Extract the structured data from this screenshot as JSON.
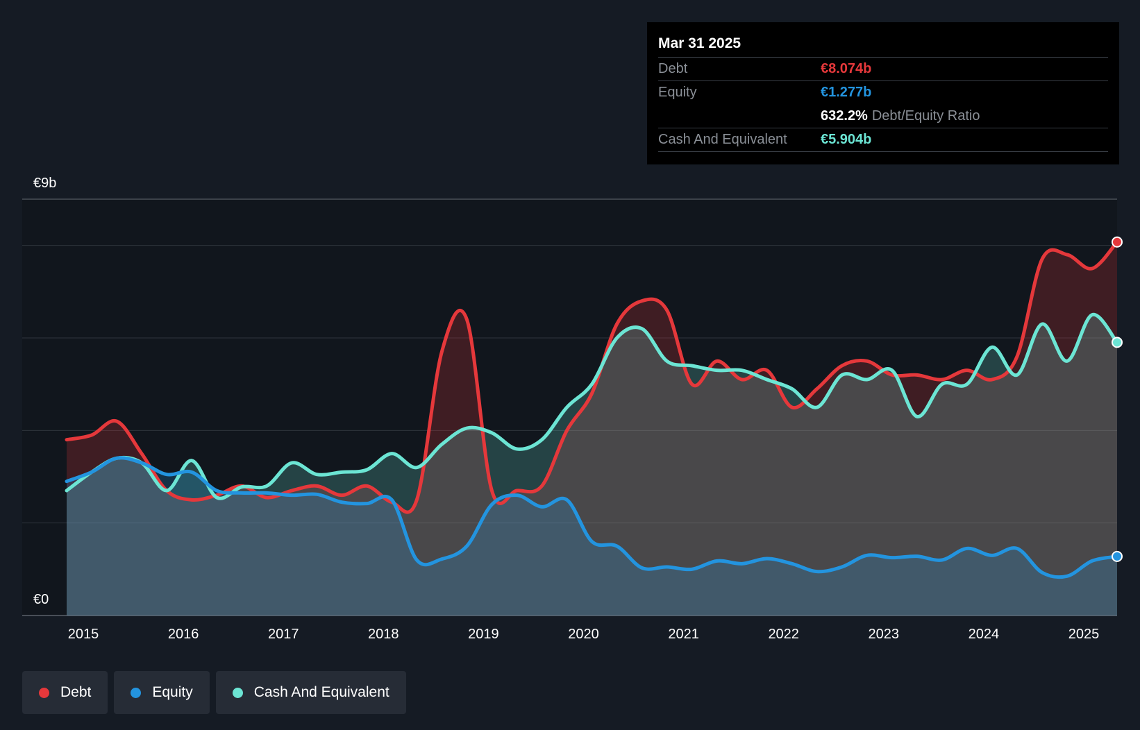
{
  "tooltip": {
    "date": "Mar 31 2025",
    "debt_label": "Debt",
    "debt_value": "€8.074b",
    "equity_label": "Equity",
    "equity_value": "€1.277b",
    "ratio_value": "632.2%",
    "ratio_label": "Debt/Equity Ratio",
    "cash_label": "Cash And Equivalent",
    "cash_value": "€5.904b"
  },
  "legend": [
    {
      "label": "Debt",
      "color": "#e5383b"
    },
    {
      "label": "Equity",
      "color": "#2394df"
    },
    {
      "label": "Cash And Equivalent",
      "color": "#6ce5d4"
    }
  ],
  "chart_data": {
    "type": "area",
    "y_axis_labels": {
      "top": "€9b",
      "bottom": "€0"
    },
    "ylim": [
      0,
      9
    ],
    "xlim": [
      2014.75,
      2025.25
    ],
    "x_ticks": [
      2015,
      2016,
      2017,
      2018,
      2019,
      2020,
      2021,
      2022,
      2023,
      2024,
      2025
    ],
    "grid": true,
    "colors": {
      "debt": "#e5383b",
      "equity": "#2394df",
      "cash": "#6ce5d4"
    },
    "series": [
      {
        "name": "Debt",
        "key": "debt",
        "points": [
          [
            2014.75,
            3.8
          ],
          [
            2015.0,
            3.9
          ],
          [
            2015.25,
            4.2
          ],
          [
            2015.5,
            3.5
          ],
          [
            2015.75,
            2.7
          ],
          [
            2016.0,
            2.5
          ],
          [
            2016.25,
            2.6
          ],
          [
            2016.5,
            2.8
          ],
          [
            2016.75,
            2.55
          ],
          [
            2017.0,
            2.7
          ],
          [
            2017.25,
            2.8
          ],
          [
            2017.5,
            2.6
          ],
          [
            2017.75,
            2.8
          ],
          [
            2018.0,
            2.45
          ],
          [
            2018.25,
            2.5
          ],
          [
            2018.5,
            5.7
          ],
          [
            2018.75,
            6.4
          ],
          [
            2019.0,
            2.7
          ],
          [
            2019.25,
            2.7
          ],
          [
            2019.5,
            2.8
          ],
          [
            2019.75,
            4.0
          ],
          [
            2020.0,
            4.8
          ],
          [
            2020.25,
            6.3
          ],
          [
            2020.5,
            6.8
          ],
          [
            2020.75,
            6.6
          ],
          [
            2021.0,
            5.0
          ],
          [
            2021.25,
            5.5
          ],
          [
            2021.5,
            5.1
          ],
          [
            2021.75,
            5.3
          ],
          [
            2022.0,
            4.5
          ],
          [
            2022.25,
            4.9
          ],
          [
            2022.5,
            5.4
          ],
          [
            2022.75,
            5.5
          ],
          [
            2023.0,
            5.2
          ],
          [
            2023.25,
            5.2
          ],
          [
            2023.5,
            5.1
          ],
          [
            2023.75,
            5.3
          ],
          [
            2024.0,
            5.1
          ],
          [
            2024.25,
            5.6
          ],
          [
            2024.5,
            7.7
          ],
          [
            2024.75,
            7.8
          ],
          [
            2025.0,
            7.5
          ],
          [
            2025.25,
            8.074
          ]
        ]
      },
      {
        "name": "Equity",
        "key": "equity",
        "points": [
          [
            2014.75,
            2.9
          ],
          [
            2015.0,
            3.1
          ],
          [
            2015.25,
            3.4
          ],
          [
            2015.5,
            3.3
          ],
          [
            2015.75,
            3.05
          ],
          [
            2016.0,
            3.1
          ],
          [
            2016.25,
            2.7
          ],
          [
            2016.5,
            2.65
          ],
          [
            2016.75,
            2.65
          ],
          [
            2017.0,
            2.6
          ],
          [
            2017.25,
            2.62
          ],
          [
            2017.5,
            2.45
          ],
          [
            2017.75,
            2.42
          ],
          [
            2018.0,
            2.5
          ],
          [
            2018.25,
            1.2
          ],
          [
            2018.5,
            1.22
          ],
          [
            2018.75,
            1.5
          ],
          [
            2019.0,
            2.4
          ],
          [
            2019.25,
            2.6
          ],
          [
            2019.5,
            2.35
          ],
          [
            2019.75,
            2.5
          ],
          [
            2020.0,
            1.6
          ],
          [
            2020.25,
            1.5
          ],
          [
            2020.5,
            1.03
          ],
          [
            2020.75,
            1.05
          ],
          [
            2021.0,
            1.0
          ],
          [
            2021.25,
            1.18
          ],
          [
            2021.5,
            1.12
          ],
          [
            2021.75,
            1.23
          ],
          [
            2022.0,
            1.12
          ],
          [
            2022.25,
            0.95
          ],
          [
            2022.5,
            1.05
          ],
          [
            2022.75,
            1.3
          ],
          [
            2023.0,
            1.25
          ],
          [
            2023.25,
            1.28
          ],
          [
            2023.5,
            1.2
          ],
          [
            2023.75,
            1.45
          ],
          [
            2024.0,
            1.3
          ],
          [
            2024.25,
            1.45
          ],
          [
            2024.5,
            0.93
          ],
          [
            2024.75,
            0.85
          ],
          [
            2025.0,
            1.18
          ],
          [
            2025.25,
            1.277
          ]
        ]
      },
      {
        "name": "Cash And Equivalent",
        "key": "cash",
        "points": [
          [
            2014.75,
            2.7
          ],
          [
            2015.0,
            3.1
          ],
          [
            2015.25,
            3.4
          ],
          [
            2015.5,
            3.3
          ],
          [
            2015.75,
            2.7
          ],
          [
            2016.0,
            3.35
          ],
          [
            2016.25,
            2.55
          ],
          [
            2016.5,
            2.78
          ],
          [
            2016.75,
            2.8
          ],
          [
            2017.0,
            3.3
          ],
          [
            2017.25,
            3.05
          ],
          [
            2017.5,
            3.1
          ],
          [
            2017.75,
            3.15
          ],
          [
            2018.0,
            3.5
          ],
          [
            2018.25,
            3.2
          ],
          [
            2018.5,
            3.7
          ],
          [
            2018.75,
            4.05
          ],
          [
            2019.0,
            3.95
          ],
          [
            2019.25,
            3.6
          ],
          [
            2019.5,
            3.8
          ],
          [
            2019.75,
            4.5
          ],
          [
            2020.0,
            5.0
          ],
          [
            2020.25,
            6.0
          ],
          [
            2020.5,
            6.2
          ],
          [
            2020.75,
            5.5
          ],
          [
            2021.0,
            5.4
          ],
          [
            2021.25,
            5.3
          ],
          [
            2021.5,
            5.3
          ],
          [
            2021.75,
            5.1
          ],
          [
            2022.0,
            4.9
          ],
          [
            2022.25,
            4.5
          ],
          [
            2022.5,
            5.2
          ],
          [
            2022.75,
            5.1
          ],
          [
            2023.0,
            5.3
          ],
          [
            2023.25,
            4.3
          ],
          [
            2023.5,
            5.0
          ],
          [
            2023.75,
            5.0
          ],
          [
            2024.0,
            5.8
          ],
          [
            2024.25,
            5.2
          ],
          [
            2024.5,
            6.3
          ],
          [
            2024.75,
            5.5
          ],
          [
            2025.0,
            6.5
          ],
          [
            2025.25,
            5.904
          ]
        ]
      }
    ]
  }
}
